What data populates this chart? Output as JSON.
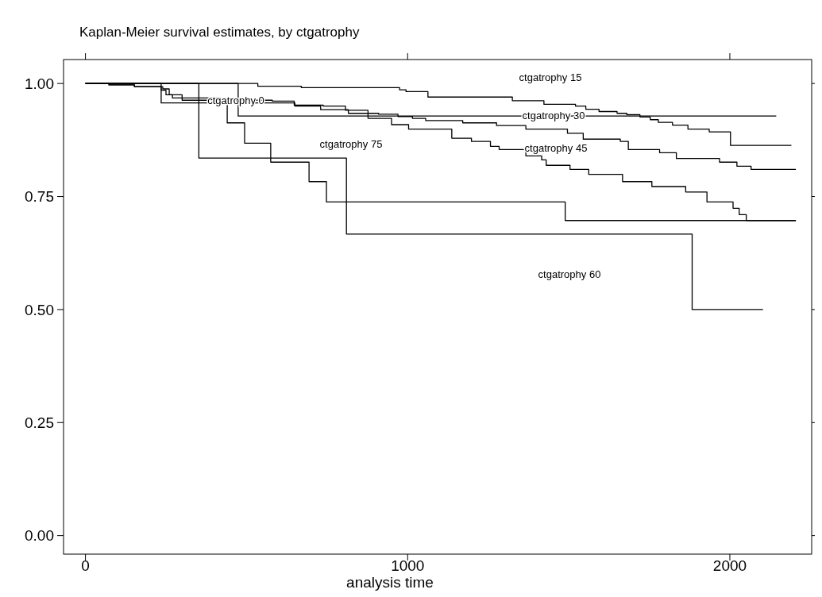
{
  "chart_data": {
    "type": "step",
    "title": "Kaplan-Meier survival estimates, by ctgatrophy",
    "xlabel": "analysis time",
    "xlim": [
      -68,
      2254
    ],
    "ylim": [
      -0.041,
      1.053
    ],
    "xticks": [
      0,
      1000,
      2000
    ],
    "yticks": [
      {
        "value": 0,
        "label": "0.00"
      },
      {
        "value": 0.25,
        "label": "0.25"
      },
      {
        "value": 0.5,
        "label": "0.50"
      },
      {
        "value": 0.75,
        "label": "0.75"
      },
      {
        "value": 1,
        "label": "1.00"
      }
    ],
    "grid": false,
    "series": [
      {
        "color": "#000000",
        "x": [
          0,
          535,
          670,
          975,
          995,
          1063,
          1325,
          1423,
          1521,
          1553,
          1594,
          1650,
          1680,
          1721,
          1753,
          1778,
          1822,
          1870,
          1936,
          2002,
          2191
        ],
        "values": [
          1,
          0.994,
          0.991,
          0.986,
          0.982,
          0.97,
          0.962,
          0.954,
          0.95,
          0.943,
          0.938,
          0.934,
          0.931,
          0.926,
          0.92,
          0.914,
          0.908,
          0.899,
          0.893,
          0.863,
          0.863
        ]
      },
      {
        "color": "#000000",
        "x": [
          0,
          474,
          2144
        ],
        "values": [
          1,
          0.928,
          0.928
        ]
      },
      {
        "color": "#000000",
        "x": [
          0,
          73,
          152,
          240,
          260,
          300,
          420,
          520,
          650,
          730,
          816,
          910,
          970,
          1015,
          1056,
          1171,
          1276,
          1367,
          1496,
          1545,
          1660,
          1685,
          1782,
          1834,
          1968,
          2022,
          2066,
          2205
        ],
        "values": [
          1,
          0.997,
          0.993,
          0.988,
          0.975,
          0.968,
          0.962,
          0.957,
          0.95,
          0.942,
          0.934,
          0.932,
          0.927,
          0.923,
          0.918,
          0.913,
          0.907,
          0.899,
          0.89,
          0.877,
          0.872,
          0.854,
          0.847,
          0.834,
          0.826,
          0.817,
          0.81,
          0.81
        ]
      },
      {
        "color": "#000000",
        "x": [
          0,
          73,
          152,
          235,
          250,
          270,
          300,
          580,
          648,
          738,
          807,
          877,
          950,
          1003,
          1137,
          1198,
          1257,
          1284,
          1367,
          1416,
          1430,
          1504,
          1562,
          1667,
          1758,
          1863,
          1929,
          2010,
          2029,
          2051,
          2205
        ],
        "values": [
          1,
          0.997,
          0.993,
          0.985,
          0.975,
          0.968,
          0.963,
          0.961,
          0.952,
          0.95,
          0.941,
          0.923,
          0.909,
          0.899,
          0.879,
          0.872,
          0.861,
          0.854,
          0.84,
          0.831,
          0.819,
          0.81,
          0.799,
          0.783,
          0.772,
          0.76,
          0.738,
          0.724,
          0.71,
          0.697,
          0.697
        ]
      },
      {
        "color": "#000000",
        "x": [
          0,
          352,
          810,
          1883,
          2103
        ],
        "values": [
          1,
          0.835,
          0.667,
          0.5,
          0.5
        ]
      },
      {
        "color": "#000000",
        "x": [
          0,
          235,
          440,
          494,
          575,
          694,
          748,
          1489,
          2205
        ],
        "values": [
          1,
          0.957,
          0.913,
          0.868,
          0.826,
          0.783,
          0.738,
          0.697,
          0.697
        ]
      }
    ],
    "annotations": [
      "ctgatrophy 15",
      "ctgatrophy 0",
      "ctgatrophy 30",
      "ctgatrophy 75",
      "ctgatrophy 45",
      "ctgatrophy 60"
    ]
  }
}
